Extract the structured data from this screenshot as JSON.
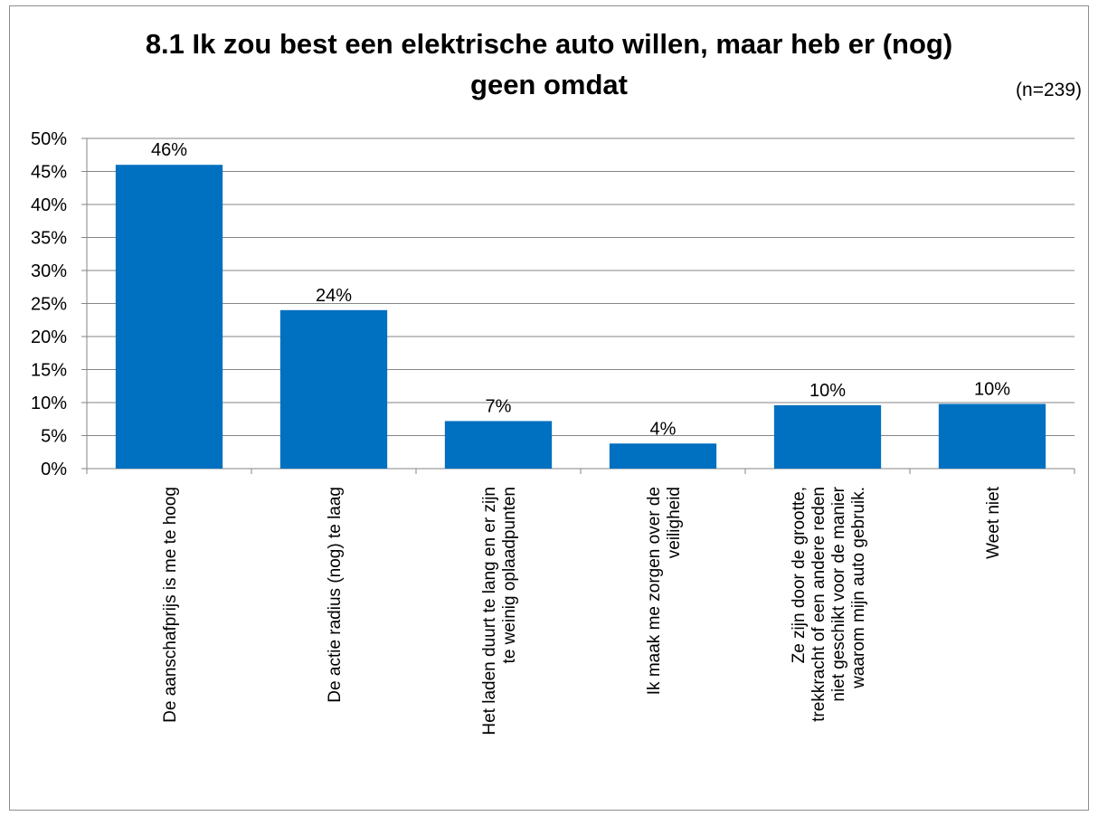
{
  "chart_data": {
    "type": "bar",
    "title_line1": "8.1 Ik zou best een elektrische auto willen, maar heb er (nog)",
    "title_line2": "geen omdat",
    "note": "(n=239)",
    "categories": [
      [
        "De aanschafprijs is me te hoog"
      ],
      [
        "De actie radius (nog) te laag"
      ],
      [
        "Het laden duurt te lang en er zijn",
        "te weinig oplaadpunten"
      ],
      [
        "Ik maak me zorgen over de",
        "veiligheid"
      ],
      [
        "Ze zijn door de grootte,",
        "trekkracht of een andere reden",
        "niet geschikt voor de manier",
        "waarom mijn auto gebruik."
      ],
      [
        "Weet niet"
      ]
    ],
    "values": [
      46,
      24,
      7.2,
      3.8,
      9.6,
      9.8
    ],
    "data_labels": [
      "46%",
      "24%",
      "7%",
      "4%",
      "10%",
      "10%"
    ],
    "yticks": [
      "0%",
      "5%",
      "10%",
      "15%",
      "20%",
      "25%",
      "30%",
      "35%",
      "40%",
      "45%",
      "50%"
    ],
    "ylim": [
      0,
      50
    ],
    "grid": true,
    "bar_color": "#0070c0",
    "grid_color": "#868686"
  }
}
